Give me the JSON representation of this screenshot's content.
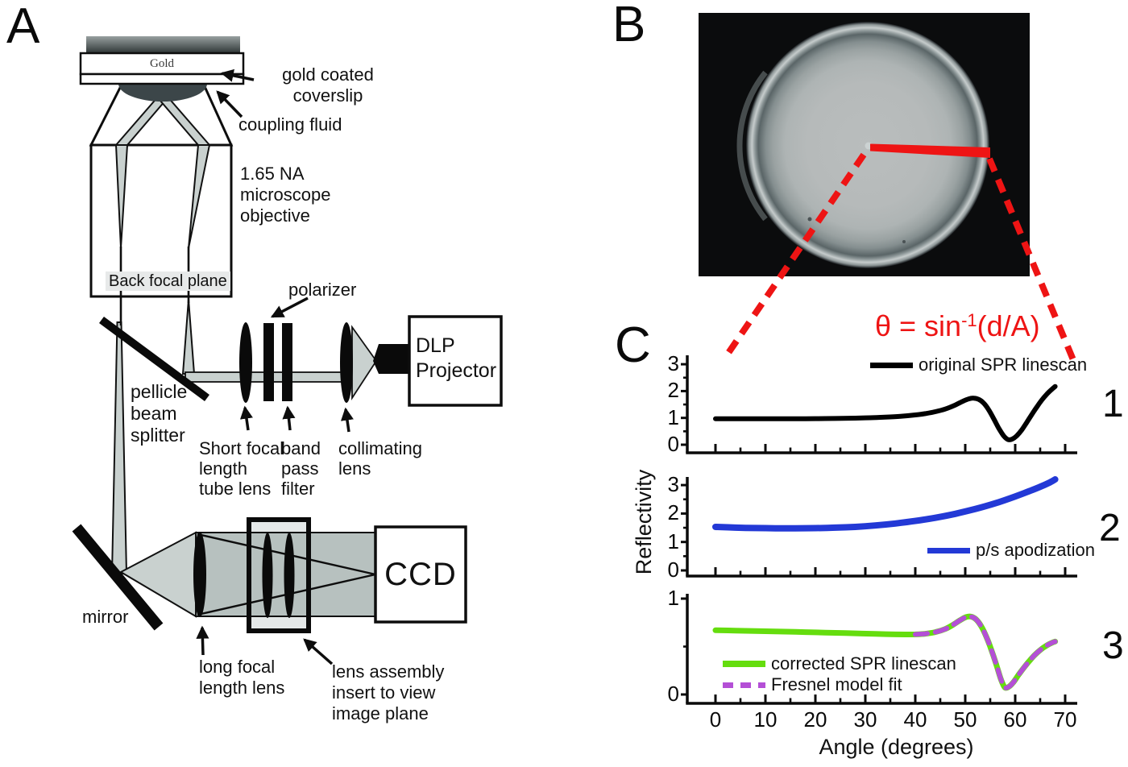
{
  "figure": {
    "panel_labels": {
      "a": "A",
      "b": "B",
      "c": "C"
    },
    "colors": {
      "red": "#ee1414",
      "blue": "#2339d6",
      "green": "#65dd0e",
      "magenta": "#b44fd6",
      "black": "#000000"
    },
    "panel_a": {
      "gold_label": "Gold",
      "coverslip_label": "gold coated\ncoverslip",
      "coupling_label": "coupling fluid",
      "objective_label": "1.65 NA\nmicroscope\nobjective",
      "bfp_label": "Back focal plane",
      "pellicle_label": "pellicle\nbeam\nsplitter",
      "polarizer_label": "polarizer",
      "tube_lens_label": "Short focal\nlength\ntube lens",
      "bandpass_label": "band\npass\nfilter",
      "collimating_label": "collimating\nlens",
      "dlp_label": "DLP\nProjector",
      "mirror_label": "mirror",
      "long_lens_label": "long focal\nlength lens",
      "assembly_label": "lens assembly\ninsert to view\nimage plane",
      "ccd_label": "CCD"
    },
    "panel_b": {
      "formula_prefix": "θ = sin",
      "formula_sup": "-1",
      "formula_suffix": "(d/A)"
    },
    "chart_data": {
      "type": "line",
      "xlabel": "Angle (degrees)",
      "ylabel": "Reflectivity",
      "x_ticks": [
        0,
        10,
        20,
        30,
        40,
        50,
        60,
        70
      ],
      "x_minor_step": 5,
      "x_range": [
        0,
        68
      ],
      "panels": [
        {
          "tag": "1",
          "y_ticks": [
            0,
            1,
            2,
            3
          ],
          "legend": [
            {
              "label": "original SPR linescan",
              "color": "#000000",
              "dashed": false
            }
          ],
          "series": [
            {
              "name": "original SPR linescan",
              "color": "#000000",
              "width": 6,
              "dashed": false,
              "points": [
                [
                  0,
                  0.97
                ],
                [
                  4,
                  0.968
                ],
                [
                  8,
                  0.966
                ],
                [
                  12,
                  0.966
                ],
                [
                  16,
                  0.968
                ],
                [
                  20,
                  0.972
                ],
                [
                  24,
                  0.98
                ],
                [
                  28,
                  0.992
                ],
                [
                  31,
                  1.005
                ],
                [
                  34,
                  1.03
                ],
                [
                  37,
                  1.06
                ],
                [
                  40,
                  1.11
                ],
                [
                  42,
                  1.16
                ],
                [
                  44,
                  1.23
                ],
                [
                  46,
                  1.33
                ],
                [
                  48,
                  1.48
                ],
                [
                  49.5,
                  1.62
                ],
                [
                  50.7,
                  1.71
                ],
                [
                  51.7,
                  1.735
                ],
                [
                  52.7,
                  1.69
                ],
                [
                  53.7,
                  1.55
                ],
                [
                  54.7,
                  1.3
                ],
                [
                  55.7,
                  0.97
                ],
                [
                  56.7,
                  0.62
                ],
                [
                  57.7,
                  0.33
                ],
                [
                  58.6,
                  0.19
                ],
                [
                  59.4,
                  0.21
                ],
                [
                  60.3,
                  0.33
                ],
                [
                  61.3,
                  0.55
                ],
                [
                  62.3,
                  0.83
                ],
                [
                  63.3,
                  1.12
                ],
                [
                  64.3,
                  1.4
                ],
                [
                  65.3,
                  1.66
                ],
                [
                  66.3,
                  1.88
                ],
                [
                  67.3,
                  2.06
                ],
                [
                  68,
                  2.17
                ]
              ]
            }
          ]
        },
        {
          "tag": "2",
          "y_ticks": [
            0,
            1,
            2,
            3
          ],
          "legend": [
            {
              "label": "p/s apodization",
              "color": "#2339d6",
              "dashed": false
            }
          ],
          "series": [
            {
              "name": "p/s apodization",
              "color": "#2339d6",
              "width": 8,
              "dashed": false,
              "points": [
                [
                  0,
                  1.53
                ],
                [
                  4,
                  1.505
                ],
                [
                  8,
                  1.49
                ],
                [
                  12,
                  1.482
                ],
                [
                  16,
                  1.48
                ],
                [
                  20,
                  1.487
                ],
                [
                  24,
                  1.503
                ],
                [
                  28,
                  1.53
                ],
                [
                  32,
                  1.58
                ],
                [
                  36,
                  1.65
                ],
                [
                  40,
                  1.74
                ],
                [
                  44,
                  1.85
                ],
                [
                  48,
                  1.99
                ],
                [
                  52,
                  2.16
                ],
                [
                  56,
                  2.36
                ],
                [
                  60,
                  2.6
                ],
                [
                  63,
                  2.8
                ],
                [
                  65,
                  2.94
                ],
                [
                  67,
                  3.1
                ],
                [
                  68,
                  3.2
                ]
              ]
            }
          ]
        },
        {
          "tag": "3",
          "y_ticks": [
            0,
            1
          ],
          "legend": [
            {
              "label": "corrected SPR linescan",
              "color": "#65dd0e",
              "dashed": false
            },
            {
              "label": "Fresnel model fit",
              "color": "#b44fd6",
              "dashed": true
            }
          ],
          "series": [
            {
              "name": "corrected SPR linescan",
              "color": "#65dd0e",
              "width": 7,
              "dashed": false,
              "points": [
                [
                  0,
                  0.67
                ],
                [
                  4,
                  0.666
                ],
                [
                  8,
                  0.662
                ],
                [
                  12,
                  0.658
                ],
                [
                  16,
                  0.653
                ],
                [
                  20,
                  0.648
                ],
                [
                  24,
                  0.643
                ],
                [
                  28,
                  0.638
                ],
                [
                  32,
                  0.632
                ],
                [
                  35,
                  0.628
                ],
                [
                  38,
                  0.626
                ],
                [
                  40,
                  0.627
                ],
                [
                  42,
                  0.634
                ],
                [
                  44,
                  0.65
                ],
                [
                  46,
                  0.683
                ],
                [
                  47.5,
                  0.725
                ],
                [
                  49,
                  0.776
                ],
                [
                  50.2,
                  0.808
                ],
                [
                  51.2,
                  0.812
                ],
                [
                  52.2,
                  0.782
                ],
                [
                  53.2,
                  0.712
                ],
                [
                  54.2,
                  0.605
                ],
                [
                  55.2,
                  0.47
                ],
                [
                  56.2,
                  0.315
                ],
                [
                  57.1,
                  0.165
                ],
                [
                  57.9,
                  0.075
                ],
                [
                  58.7,
                  0.08
                ],
                [
                  59.6,
                  0.125
                ],
                [
                  60.6,
                  0.2
                ],
                [
                  61.6,
                  0.27
                ],
                [
                  62.6,
                  0.335
                ],
                [
                  63.6,
                  0.395
                ],
                [
                  64.6,
                  0.445
                ],
                [
                  65.6,
                  0.487
                ],
                [
                  66.6,
                  0.52
                ],
                [
                  67.6,
                  0.545
                ],
                [
                  68,
                  0.552
                ]
              ]
            },
            {
              "name": "Fresnel model fit",
              "color": "#b44fd6",
              "width": 6,
              "dashed": true,
              "points": [
                [
                  40,
                  0.627
                ],
                [
                  42,
                  0.634
                ],
                [
                  44,
                  0.65
                ],
                [
                  46,
                  0.683
                ],
                [
                  47.5,
                  0.725
                ],
                [
                  49,
                  0.776
                ],
                [
                  50.2,
                  0.808
                ],
                [
                  51.2,
                  0.812
                ],
                [
                  52.2,
                  0.782
                ],
                [
                  53.2,
                  0.712
                ],
                [
                  54.2,
                  0.605
                ],
                [
                  55.2,
                  0.47
                ],
                [
                  56.2,
                  0.315
                ],
                [
                  57.1,
                  0.165
                ],
                [
                  57.9,
                  0.075
                ],
                [
                  58.7,
                  0.08
                ],
                [
                  59.6,
                  0.125
                ],
                [
                  60.6,
                  0.2
                ],
                [
                  61.6,
                  0.27
                ],
                [
                  62.6,
                  0.335
                ],
                [
                  63.6,
                  0.395
                ],
                [
                  64.6,
                  0.445
                ],
                [
                  65.6,
                  0.487
                ],
                [
                  66.6,
                  0.52
                ],
                [
                  67.6,
                  0.545
                ],
                [
                  68,
                  0.552
                ]
              ]
            }
          ]
        }
      ]
    }
  }
}
